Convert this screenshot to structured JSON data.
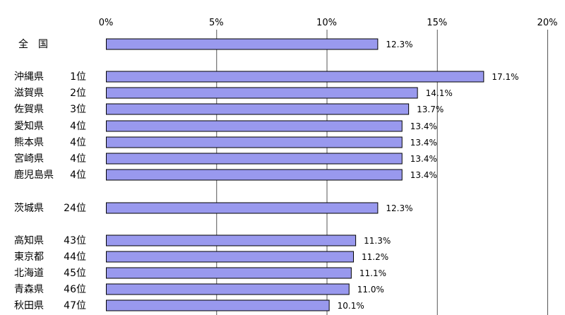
{
  "chart_data": {
    "type": "bar",
    "orientation": "horizontal",
    "title": "",
    "xlabel": "",
    "ylabel": "",
    "xlim": [
      0,
      20
    ],
    "x_ticks": [
      "0%",
      "5%",
      "10%",
      "15%",
      "20%"
    ],
    "x_tick_values": [
      0,
      5,
      10,
      15,
      20
    ],
    "grid": true,
    "legend": "none",
    "bar_color": "#9999ee",
    "categories": [
      {
        "name": "全　国",
        "rank": "",
        "value": 12.3,
        "label": "12.3%"
      },
      {
        "name": "沖縄県",
        "rank": "1位",
        "value": 17.1,
        "label": "17.1%"
      },
      {
        "name": "滋賀県",
        "rank": "2位",
        "value": 14.1,
        "label": "14.1%"
      },
      {
        "name": "佐賀県",
        "rank": "3位",
        "value": 13.7,
        "label": "13.7%"
      },
      {
        "name": "愛知県",
        "rank": "4位",
        "value": 13.4,
        "label": "13.4%"
      },
      {
        "name": "熊本県",
        "rank": "4位",
        "value": 13.4,
        "label": "13.4%"
      },
      {
        "name": "宮崎県",
        "rank": "4位",
        "value": 13.4,
        "label": "13.4%"
      },
      {
        "name": "鹿児島県",
        "rank": "4位",
        "value": 13.4,
        "label": "13.4%"
      },
      {
        "name": "茨城県",
        "rank": "24位",
        "value": 12.3,
        "label": "12.3%"
      },
      {
        "name": "高知県",
        "rank": "43位",
        "value": 11.3,
        "label": "11.3%"
      },
      {
        "name": "東京都",
        "rank": "44位",
        "value": 11.2,
        "label": "11.2%"
      },
      {
        "name": "北海道",
        "rank": "45位",
        "value": 11.1,
        "label": "11.1%"
      },
      {
        "name": "青森県",
        "rank": "46位",
        "value": 11.0,
        "label": "11.0%"
      },
      {
        "name": "秋田県",
        "rank": "47位",
        "value": 10.1,
        "label": "10.1%"
      }
    ]
  }
}
